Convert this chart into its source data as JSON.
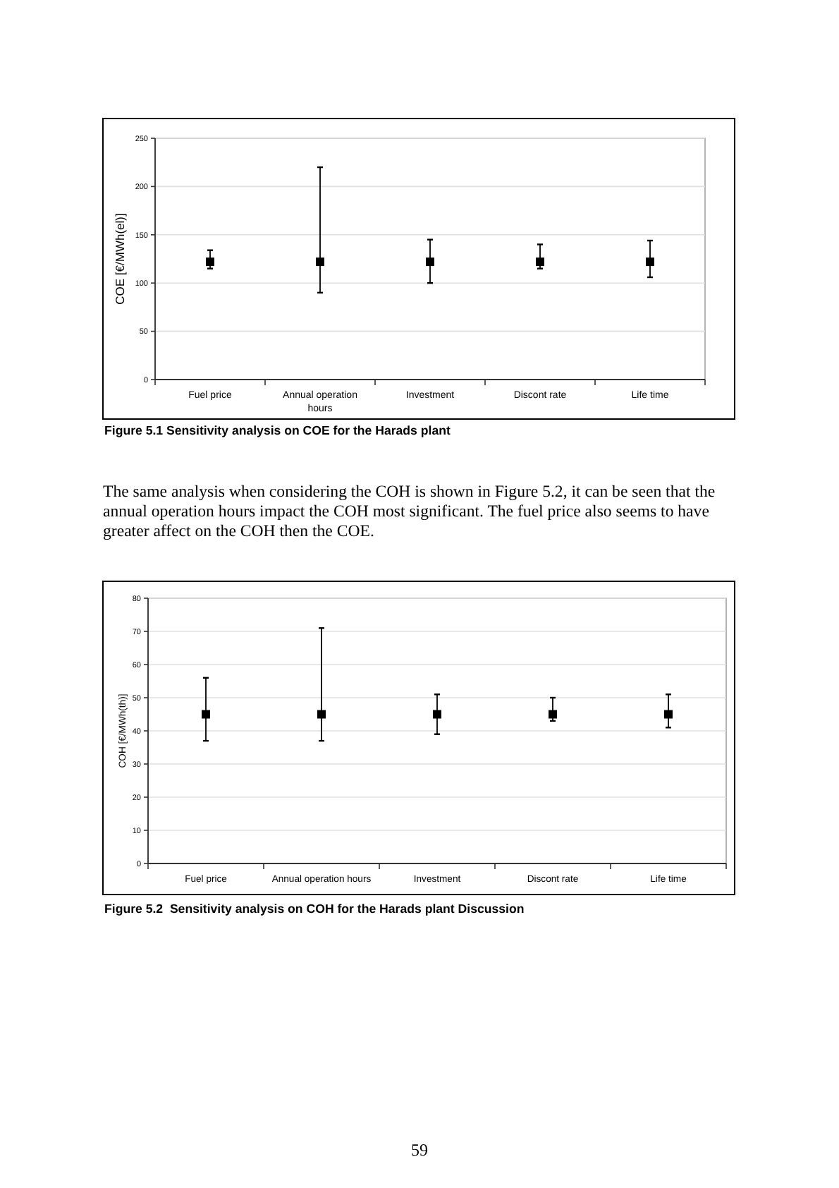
{
  "chart_data": [
    {
      "type": "scatter",
      "title": "Figure 5.1 Sensitivity analysis on COE for the Harads plant",
      "ylabel": "COE [€/MWh(el)]",
      "categories": [
        "Fuel price",
        "Annual operation hours",
        "Investment",
        "Discont rate",
        "Life time"
      ],
      "series": [
        {
          "color": "#000000",
          "values": [
            122,
            122,
            122,
            122,
            122
          ],
          "errors": [
            [
              115,
              134
            ],
            [
              90,
              220
            ],
            [
              100,
              145
            ],
            [
              115,
              140
            ],
            [
              106,
              144
            ]
          ]
        }
      ],
      "ylim": [
        0,
        250
      ],
      "yticks": [
        0,
        50,
        100,
        150,
        200,
        250
      ],
      "grid": "y",
      "marker": "square",
      "annotations": [
        "The same analysis when considering the COH is shown in Figure 5.2, it can be seen that the annual operation hours impact the COH most significant. The fuel price also seems to have greater affect on the COH then the COE."
      ]
    },
    {
      "type": "scatter",
      "title": "Figure 5.2  Sensitivity analysis on COH for the Harads plant Discussion",
      "ylabel": "COH [€/MWh(th)]",
      "categories": [
        "Fuel price",
        "Annual operation hours",
        "Investment",
        "Discont rate",
        "Life time"
      ],
      "series": [
        {
          "color": "#000000",
          "values": [
            45,
            45,
            45,
            45,
            45
          ],
          "errors": [
            [
              37,
              56
            ],
            [
              37,
              71
            ],
            [
              39,
              51
            ],
            [
              43,
              50
            ],
            [
              41,
              51
            ]
          ]
        }
      ],
      "ylim": [
        0,
        80
      ],
      "yticks": [
        0,
        10,
        20,
        30,
        40,
        50,
        60,
        70,
        80
      ],
      "grid": "y",
      "marker": "square",
      "annotations": [
        "59"
      ]
    }
  ]
}
